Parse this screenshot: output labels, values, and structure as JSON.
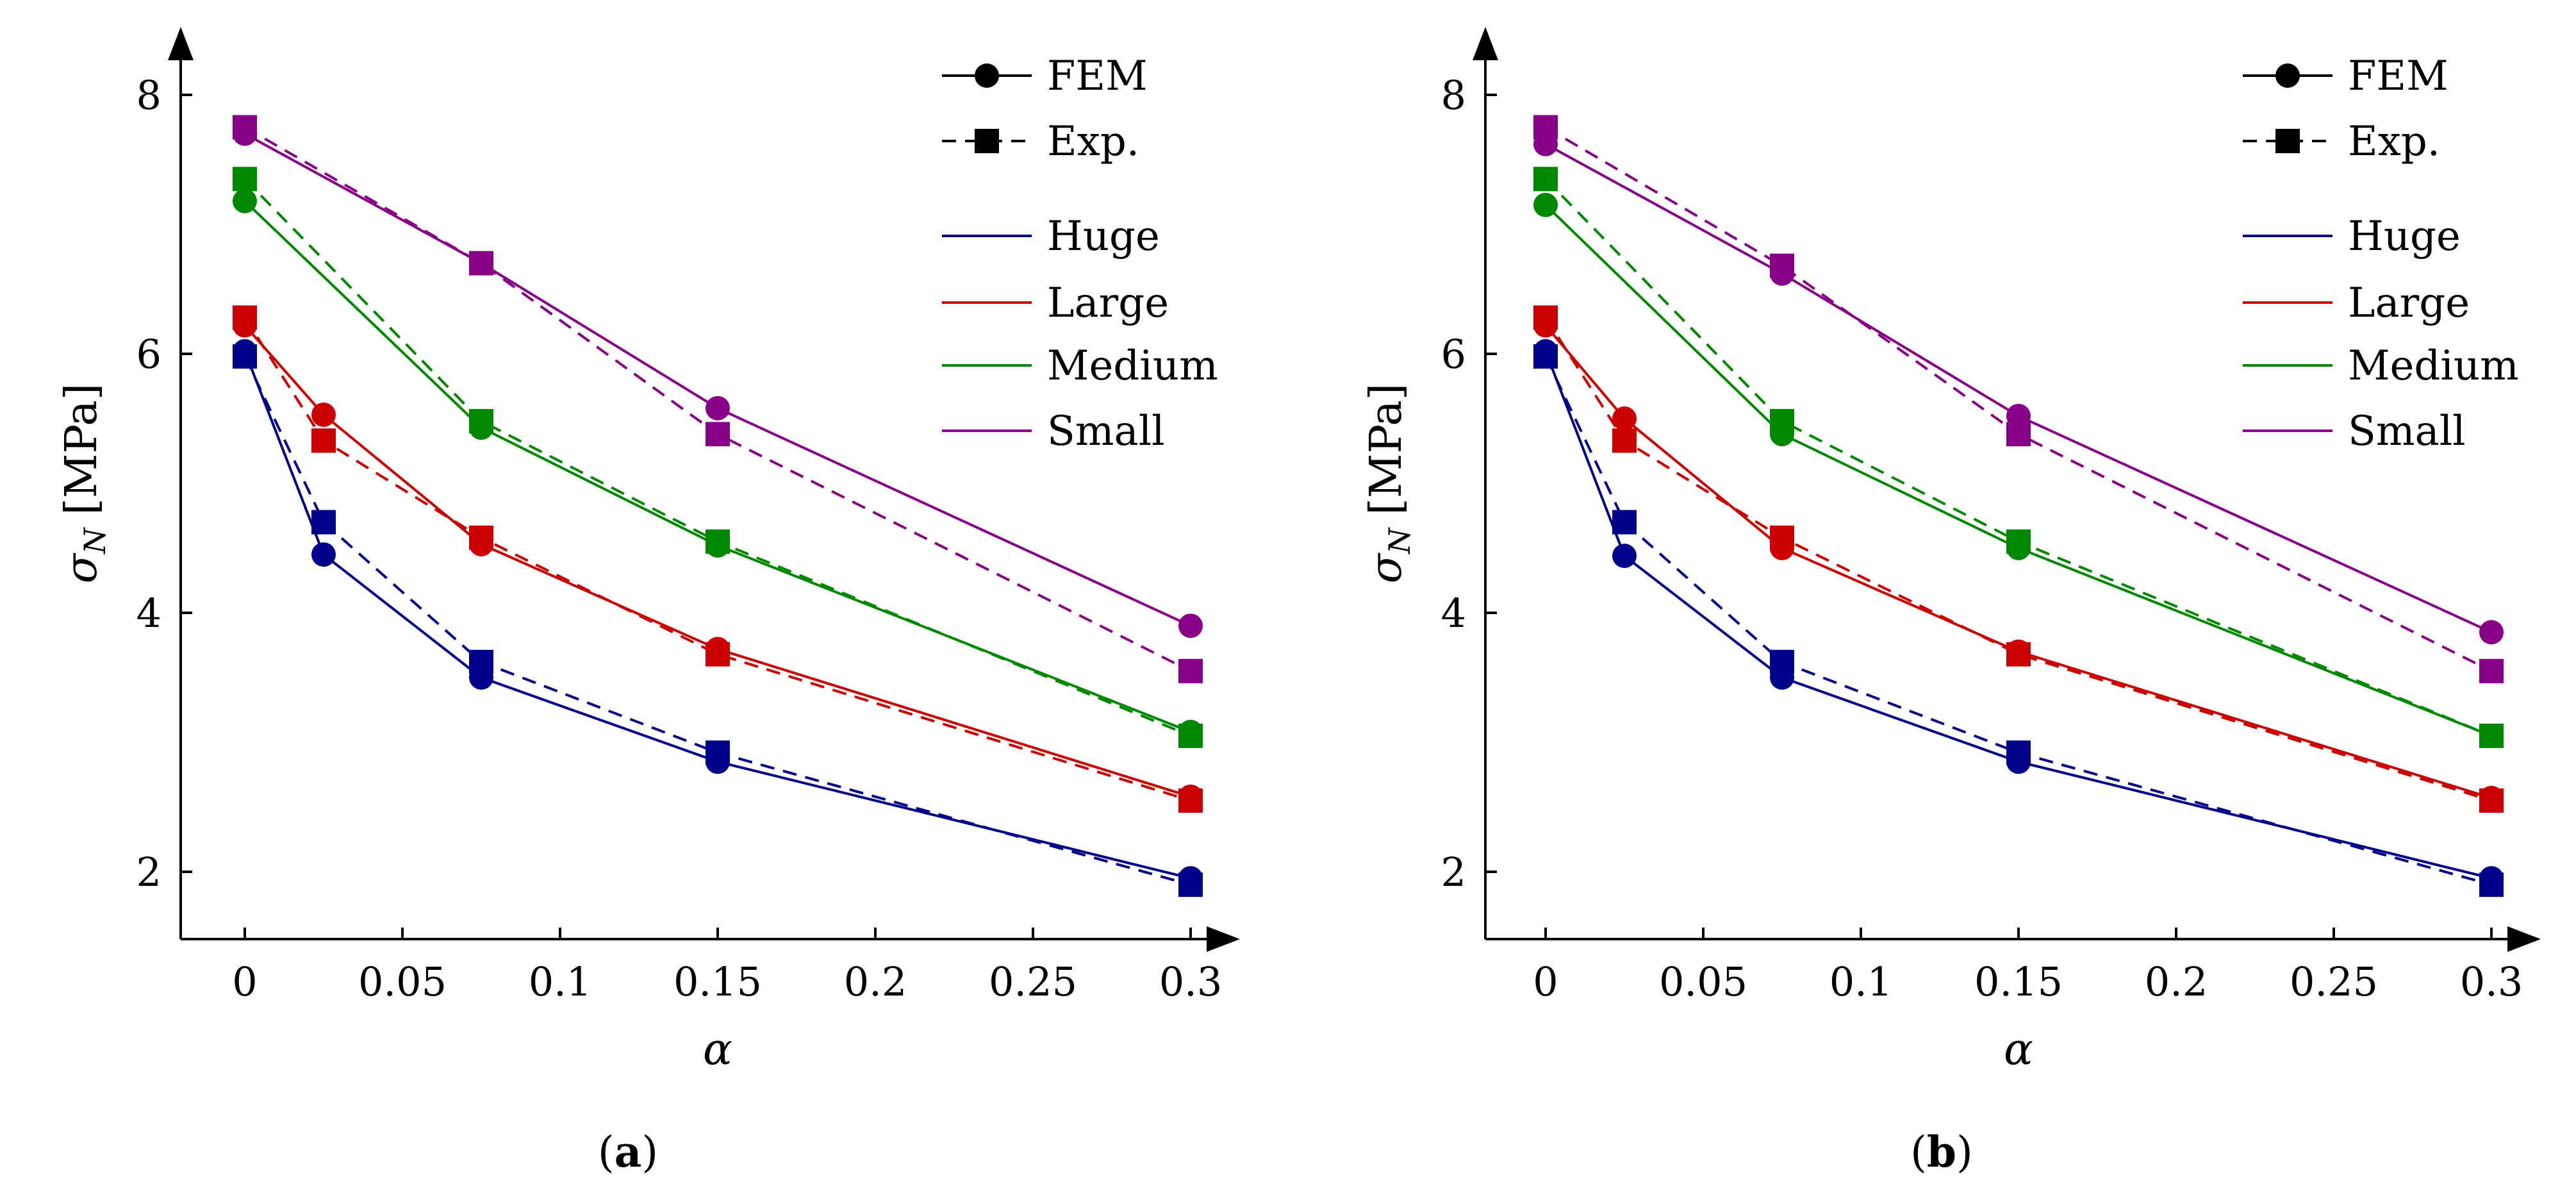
{
  "chart_data": [
    {
      "type": "line",
      "panel_label_open": "(",
      "panel_label_letter": "a",
      "panel_label_close": ")",
      "xlabel": "α",
      "ylabel_main": "σ",
      "ylabel_sub": "N",
      "ylabel_unit": "[MPa]",
      "xlim": [
        -0.02,
        0.32
      ],
      "ylim": [
        1.5,
        8.6
      ],
      "xticks": [
        0,
        0.05,
        0.1,
        0.15,
        0.2,
        0.25,
        0.3
      ],
      "xtick_labels": [
        "0",
        "0.05",
        "0.1",
        "0.15",
        "0.2",
        "0.25",
        "0.3"
      ],
      "yticks": [
        2,
        4,
        6,
        8
      ],
      "ytick_labels": [
        "2",
        "4",
        "6",
        "8"
      ],
      "legend": {
        "style_entries": [
          {
            "label": "FEM",
            "style": "solid",
            "marker": "circle"
          },
          {
            "label": "Exp.",
            "style": "dashed",
            "marker": "square"
          }
        ],
        "color_entries": [
          {
            "label": "Huge",
            "color": "#00008b"
          },
          {
            "label": "Large",
            "color": "#cc0000"
          },
          {
            "label": "Medium",
            "color": "#008800"
          },
          {
            "label": "Small",
            "color": "#880088"
          }
        ]
      },
      "series": [
        {
          "name": "Huge",
          "color": "#00008b",
          "fem": {
            "x": [
              0,
              0.025,
              0.075,
              0.15,
              0.3
            ],
            "y": [
              6.02,
              4.45,
              3.5,
              2.85,
              1.95
            ]
          },
          "exp": {
            "x": [
              0,
              0.025,
              0.075,
              0.15,
              0.3
            ],
            "y": [
              5.98,
              4.7,
              3.62,
              2.92,
              1.9
            ]
          }
        },
        {
          "name": "Large",
          "color": "#cc0000",
          "fem": {
            "x": [
              0,
              0.025,
              0.075,
              0.15,
              0.3
            ],
            "y": [
              6.22,
              5.53,
              4.53,
              3.72,
              2.58
            ]
          },
          "exp": {
            "x": [
              0,
              0.025,
              0.075,
              0.15,
              0.3
            ],
            "y": [
              6.28,
              5.33,
              4.58,
              3.68,
              2.55
            ]
          }
        },
        {
          "name": "Medium",
          "color": "#008800",
          "fem": {
            "x": [
              0,
              0.075,
              0.15,
              0.3
            ],
            "y": [
              7.18,
              5.43,
              4.52,
              3.08
            ]
          },
          "exp": {
            "x": [
              0,
              0.075,
              0.15,
              0.3
            ],
            "y": [
              7.35,
              5.48,
              4.55,
              3.05
            ]
          }
        },
        {
          "name": "Small",
          "color": "#880088",
          "fem": {
            "x": [
              0,
              0.075,
              0.15,
              0.3
            ],
            "y": [
              7.7,
              6.7,
              5.58,
              3.9
            ]
          },
          "exp": {
            "x": [
              0,
              0.075,
              0.15,
              0.3
            ],
            "y": [
              7.75,
              6.7,
              5.38,
              3.55
            ]
          }
        }
      ]
    },
    {
      "type": "line",
      "panel_label_open": "(",
      "panel_label_letter": "b",
      "panel_label_close": ")",
      "xlabel": "α",
      "ylabel_main": "σ",
      "ylabel_sub": "N",
      "ylabel_unit": "[MPa]",
      "xlim": [
        -0.02,
        0.32
      ],
      "ylim": [
        1.5,
        8.6
      ],
      "xticks": [
        0,
        0.05,
        0.1,
        0.15,
        0.2,
        0.25,
        0.3
      ],
      "xtick_labels": [
        "0",
        "0.05",
        "0.1",
        "0.15",
        "0.2",
        "0.25",
        "0.3"
      ],
      "yticks": [
        2,
        4,
        6,
        8
      ],
      "ytick_labels": [
        "2",
        "4",
        "6",
        "8"
      ],
      "legend": {
        "style_entries": [
          {
            "label": "FEM",
            "style": "solid",
            "marker": "circle"
          },
          {
            "label": "Exp.",
            "style": "dashed",
            "marker": "square"
          }
        ],
        "color_entries": [
          {
            "label": "Huge",
            "color": "#00008b"
          },
          {
            "label": "Large",
            "color": "#cc0000"
          },
          {
            "label": "Medium",
            "color": "#008800"
          },
          {
            "label": "Small",
            "color": "#880088"
          }
        ]
      },
      "series": [
        {
          "name": "Huge",
          "color": "#00008b",
          "fem": {
            "x": [
              0,
              0.025,
              0.075,
              0.15,
              0.3
            ],
            "y": [
              6.02,
              4.44,
              3.5,
              2.85,
              1.95
            ]
          },
          "exp": {
            "x": [
              0,
              0.025,
              0.075,
              0.15,
              0.3
            ],
            "y": [
              5.98,
              4.7,
              3.62,
              2.92,
              1.9
            ]
          }
        },
        {
          "name": "Large",
          "color": "#cc0000",
          "fem": {
            "x": [
              0,
              0.025,
              0.075,
              0.15,
              0.3
            ],
            "y": [
              6.22,
              5.5,
              4.5,
              3.7,
              2.57
            ]
          },
          "exp": {
            "x": [
              0,
              0.025,
              0.075,
              0.15,
              0.3
            ],
            "y": [
              6.28,
              5.33,
              4.58,
              3.68,
              2.55
            ]
          }
        },
        {
          "name": "Medium",
          "color": "#008800",
          "fem": {
            "x": [
              0,
              0.075,
              0.15,
              0.3
            ],
            "y": [
              7.15,
              5.38,
              4.5,
              3.05
            ]
          },
          "exp": {
            "x": [
              0,
              0.075,
              0.15,
              0.3
            ],
            "y": [
              7.35,
              5.48,
              4.55,
              3.05
            ]
          }
        },
        {
          "name": "Small",
          "color": "#880088",
          "fem": {
            "x": [
              0,
              0.075,
              0.15,
              0.3
            ],
            "y": [
              7.62,
              6.62,
              5.52,
              3.85
            ]
          },
          "exp": {
            "x": [
              0,
              0.075,
              0.15,
              0.3
            ],
            "y": [
              7.75,
              6.68,
              5.38,
              3.55
            ]
          }
        }
      ]
    }
  ]
}
